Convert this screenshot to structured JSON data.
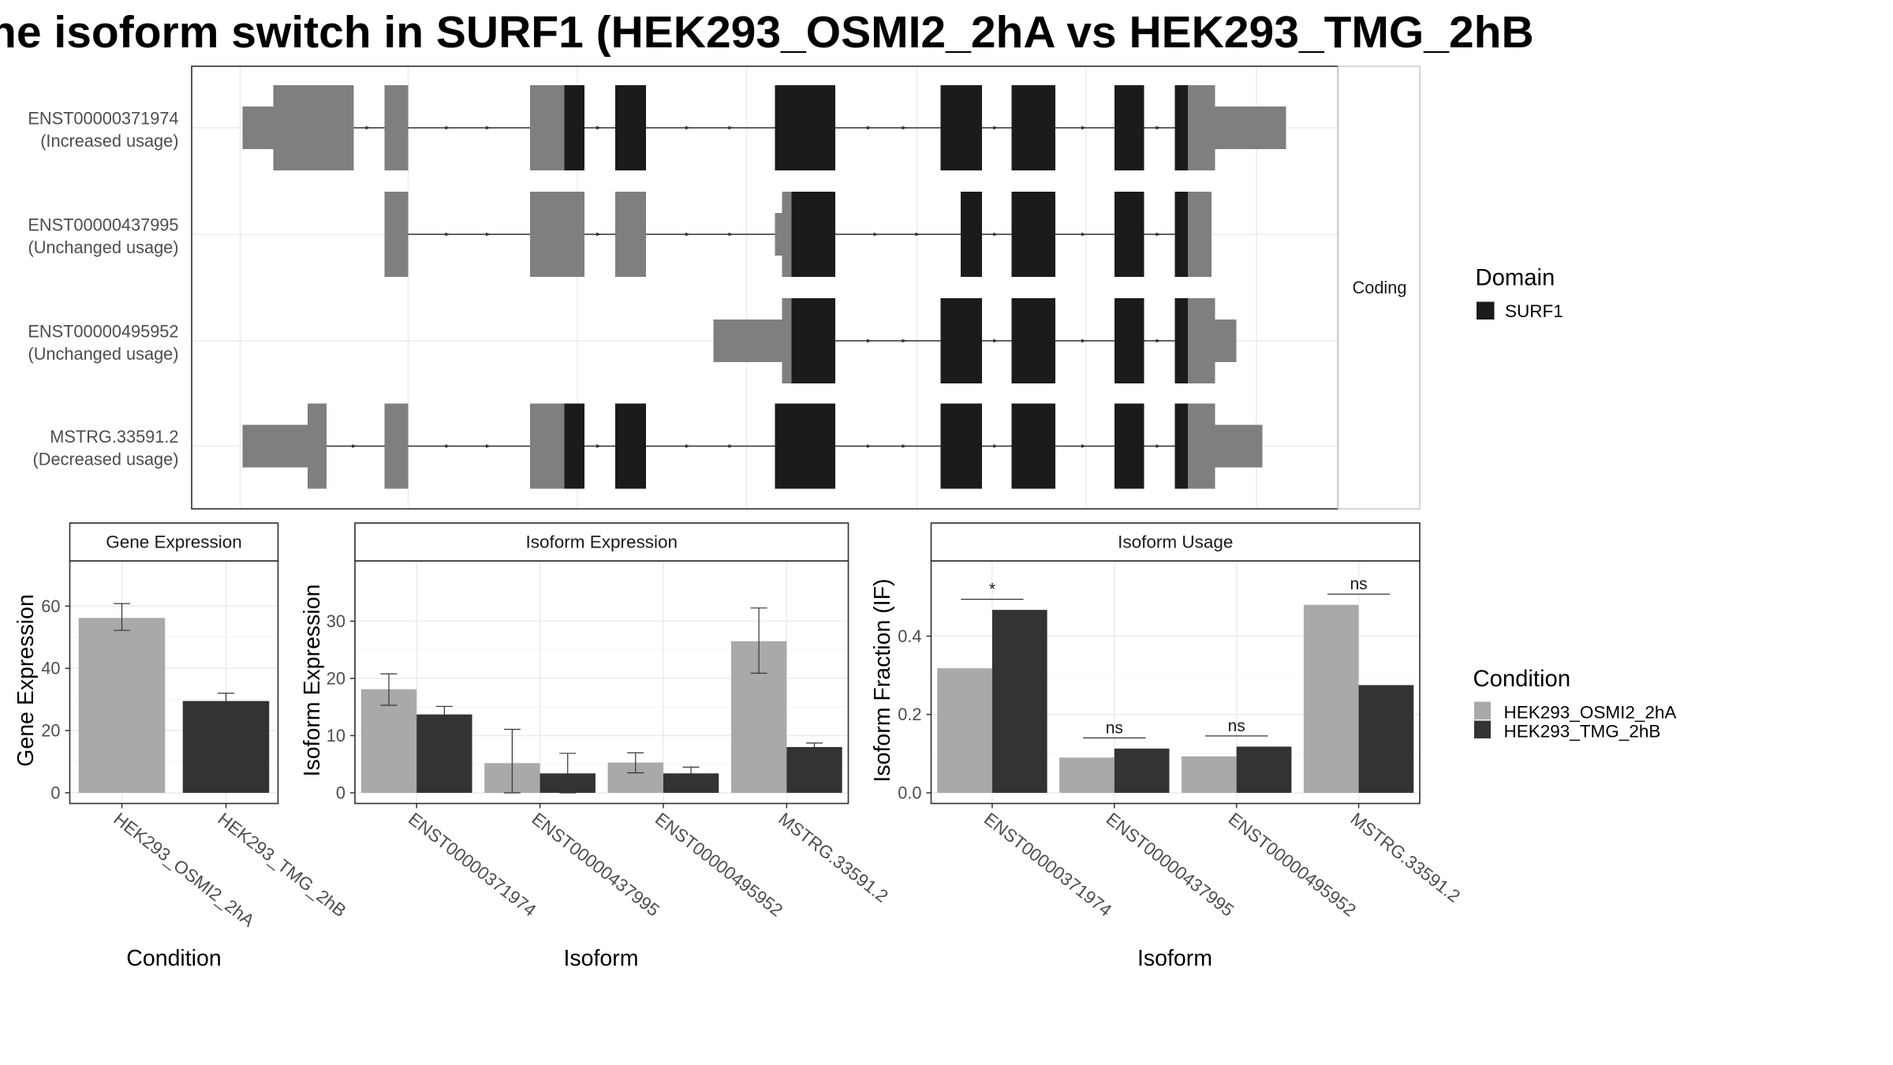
{
  "title": "he isoform switch in SURF1 (HEK293_OSMI2_2hA vs HEK293_TMG_2hB",
  "colors": {
    "condition_a": "#a9a9a9",
    "condition_b": "#333333",
    "domain": "#1b1b1b",
    "utr": "#7f7f7f",
    "grid": "#ebebeb",
    "panel_border": "#333333",
    "strip_border": "#c8c8c8"
  },
  "structure_panel": {
    "facet_label": "Coding",
    "legend_title": "Domain",
    "legend_items": [
      {
        "label": "SURF1",
        "color": "#1b1b1b"
      }
    ],
    "transcripts": [
      {
        "id": "ENST00000371974",
        "usage": "(Increased usage)",
        "features": [
          [
            205,
            231,
            "u"
          ],
          [
            231,
            299,
            "U"
          ],
          [
            325,
            345,
            "U"
          ],
          [
            448,
            477,
            "U"
          ],
          [
            477,
            494,
            "D"
          ],
          [
            520,
            546,
            "D"
          ],
          [
            655,
            706,
            "D"
          ],
          [
            795,
            830,
            "D"
          ],
          [
            855,
            892,
            "D"
          ],
          [
            942,
            967,
            "D"
          ],
          [
            993,
            1004,
            "D"
          ],
          [
            1004,
            1027,
            "U"
          ],
          [
            1027,
            1087,
            "u"
          ]
        ]
      },
      {
        "id": "ENST00000437995",
        "usage": "(Unchanged usage)",
        "features": [
          [
            325,
            345,
            "U"
          ],
          [
            448,
            494,
            "U"
          ],
          [
            520,
            546,
            "U"
          ],
          [
            655,
            661,
            "u"
          ],
          [
            661,
            669,
            "U"
          ],
          [
            669,
            706,
            "D"
          ],
          [
            812,
            830,
            "D"
          ],
          [
            855,
            892,
            "D"
          ],
          [
            942,
            967,
            "D"
          ],
          [
            993,
            1004,
            "D"
          ],
          [
            1004,
            1024,
            "U"
          ]
        ]
      },
      {
        "id": "ENST00000495952",
        "usage": "(Unchanged usage)",
        "features": [
          [
            603,
            661,
            "u"
          ],
          [
            661,
            669,
            "U"
          ],
          [
            669,
            706,
            "D"
          ],
          [
            795,
            830,
            "D"
          ],
          [
            855,
            892,
            "D"
          ],
          [
            942,
            967,
            "D"
          ],
          [
            993,
            1004,
            "D"
          ],
          [
            1004,
            1027,
            "U"
          ],
          [
            1027,
            1045,
            "u"
          ]
        ]
      },
      {
        "id": "MSTRG.33591.2",
        "usage": "(Decreased usage)",
        "features": [
          [
            205,
            260,
            "u"
          ],
          [
            260,
            276,
            "U"
          ],
          [
            325,
            345,
            "U"
          ],
          [
            448,
            477,
            "U"
          ],
          [
            477,
            494,
            "D"
          ],
          [
            520,
            546,
            "D"
          ],
          [
            655,
            706,
            "D"
          ],
          [
            795,
            830,
            "D"
          ],
          [
            855,
            892,
            "D"
          ],
          [
            942,
            967,
            "D"
          ],
          [
            993,
            1004,
            "D"
          ],
          [
            1004,
            1027,
            "U"
          ],
          [
            1027,
            1067,
            "u"
          ]
        ]
      }
    ]
  },
  "legend_condition": {
    "title": "Condition",
    "items": [
      {
        "label": "HEK293_OSMI2_2hA",
        "color": "#a9a9a9"
      },
      {
        "label": "HEK293_TMG_2hB",
        "color": "#333333"
      }
    ]
  },
  "chart_data": [
    {
      "type": "bar",
      "title": "Gene Expression",
      "xlabel": "Condition",
      "ylabel": "Gene Expression",
      "ylim": [
        0,
        73
      ],
      "yticks": [
        0,
        20,
        40,
        60
      ],
      "categories": [
        "HEK293_OSMI2_2hA",
        "HEK293_TMG_2hB"
      ],
      "values": [
        56.2,
        29.5
      ],
      "error": [
        [
          52.2,
          60.8
        ],
        [
          27.0,
          32.0
        ]
      ],
      "grid": true
    },
    {
      "type": "bar",
      "title": "Isoform Expression",
      "xlabel": "Isoform",
      "ylabel": "Isoform Expression",
      "ylim": [
        0,
        39.7
      ],
      "yticks": [
        0,
        10,
        20,
        30
      ],
      "categories": [
        "ENST00000371974",
        "ENST00000437995",
        "ENST00000495952",
        "MSTRG.33591.2"
      ],
      "series": [
        {
          "name": "HEK293_OSMI2_2hA",
          "values": [
            18.1,
            5.2,
            5.3,
            26.5
          ],
          "error": [
            [
              15.3,
              20.8
            ],
            [
              0.0,
              11.1
            ],
            [
              3.5,
              7.0
            ],
            [
              20.9,
              32.3
            ]
          ]
        },
        {
          "name": "HEK293_TMG_2hB",
          "values": [
            13.7,
            3.4,
            3.4,
            8.0
          ],
          "error": [
            [
              12.2,
              15.1
            ],
            [
              0.0,
              6.9
            ],
            [
              2.4,
              4.5
            ],
            [
              7.3,
              8.7
            ]
          ]
        }
      ],
      "grid": true
    },
    {
      "type": "bar",
      "title": "Isoform Usage",
      "xlabel": "Isoform",
      "ylabel": "Isoform Fraction (IF)",
      "ylim": [
        0,
        0.58
      ],
      "yticks": [
        0.0,
        0.2,
        0.4
      ],
      "ytick_labels": [
        "0.0",
        "0.2",
        "0.4"
      ],
      "categories": [
        "ENST00000371974",
        "ENST00000437995",
        "ENST00000495952",
        "MSTRG.33591.2"
      ],
      "series": [
        {
          "name": "HEK293_OSMI2_2hA",
          "values": [
            0.318,
            0.09,
            0.093,
            0.48
          ]
        },
        {
          "name": "HEK293_TMG_2hB",
          "values": [
            0.467,
            0.113,
            0.118,
            0.275
          ]
        }
      ],
      "significance": [
        "*",
        "ns",
        "ns",
        "ns"
      ],
      "grid": true
    }
  ]
}
